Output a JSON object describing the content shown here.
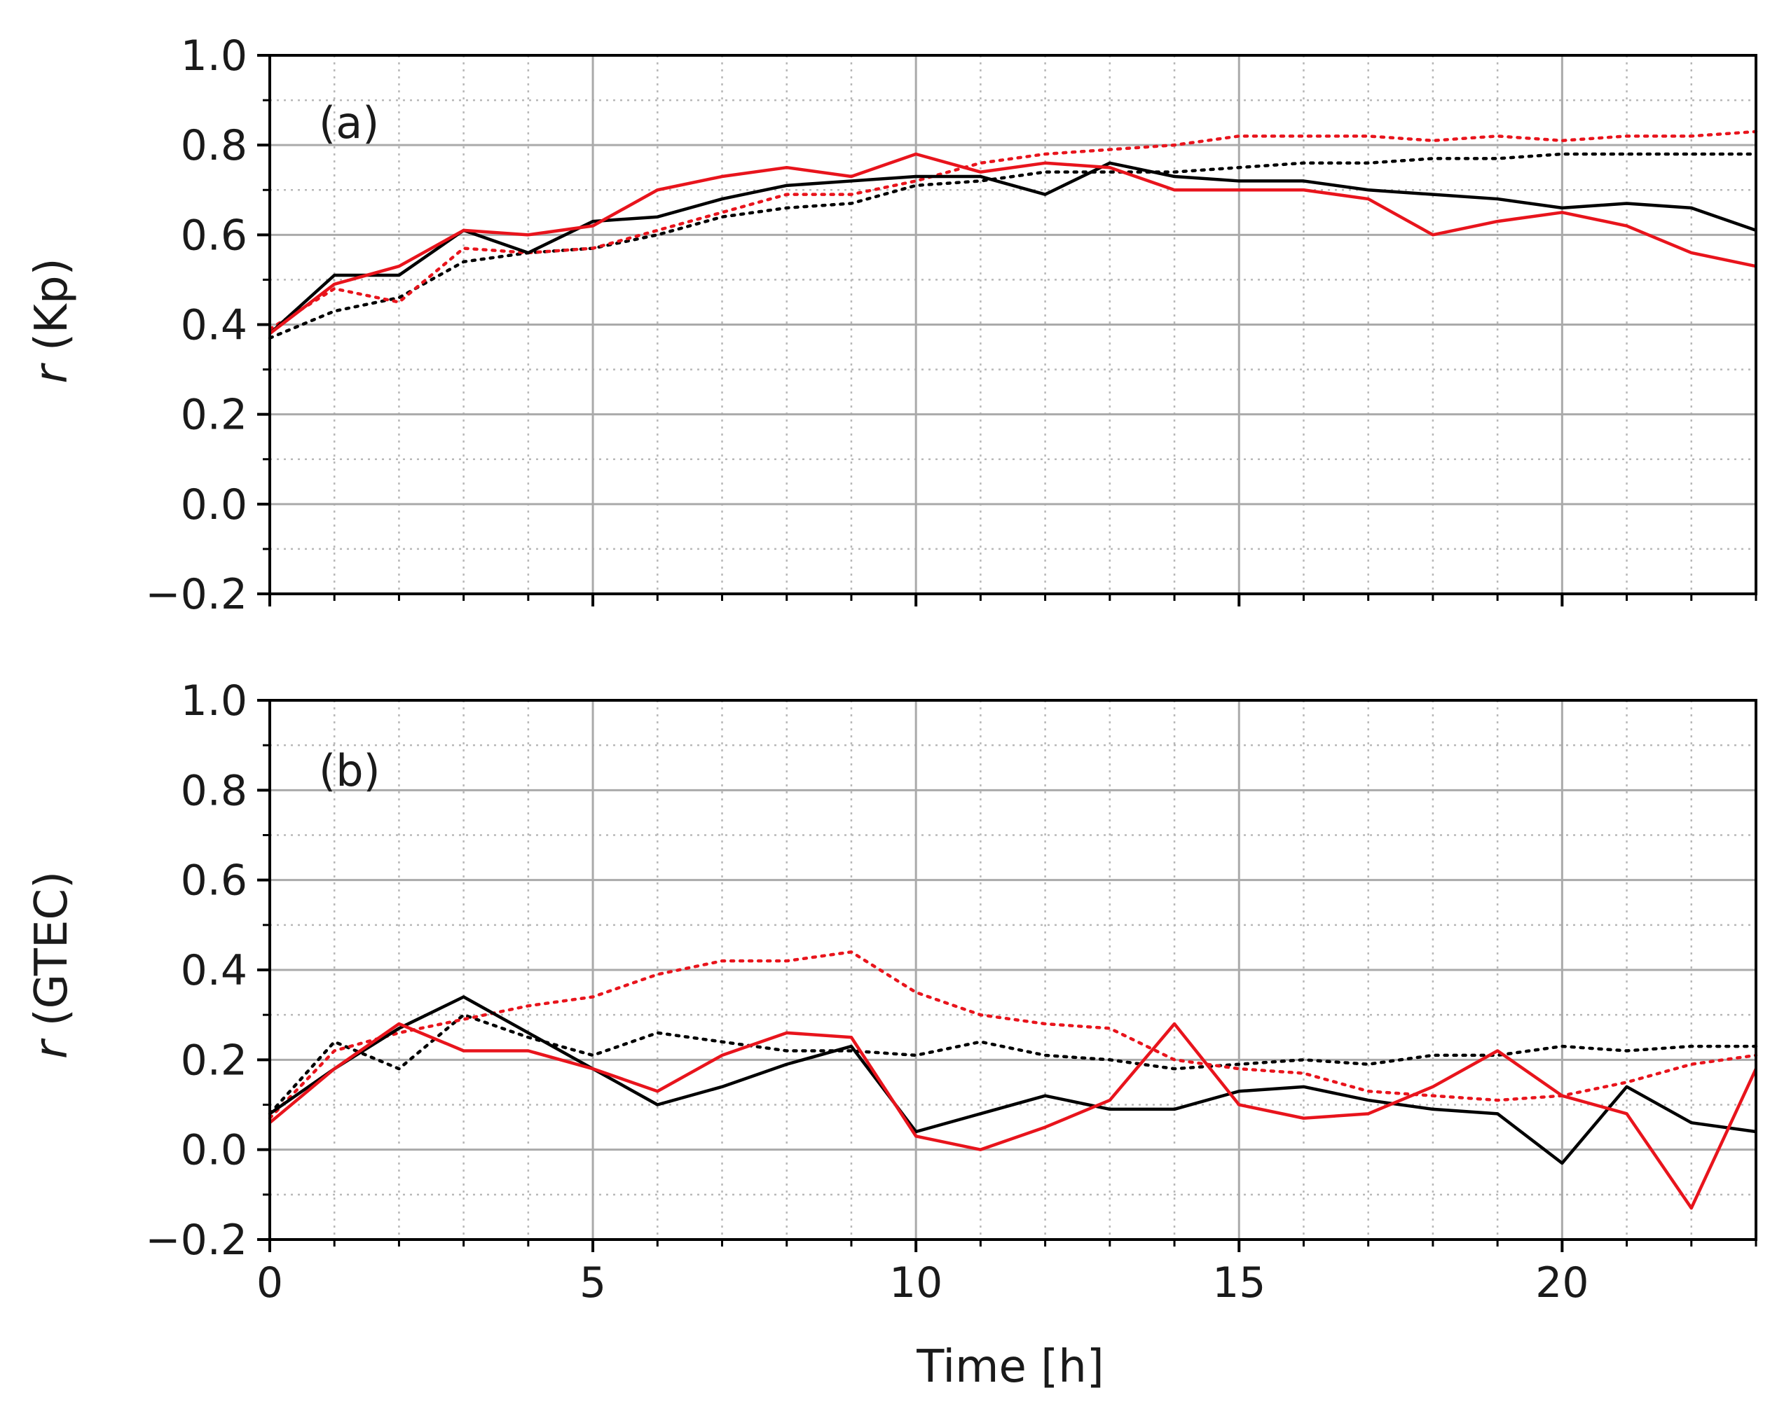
{
  "chart_data": [
    {
      "type": "line",
      "panel_label": "(a)",
      "ylabel_var": "r",
      "ylabel_rest": " (Kp)",
      "xlabel": "",
      "xlim": [
        0,
        23
      ],
      "ylim": [
        -0.2,
        1.0
      ],
      "yticks": [
        -0.2,
        0.0,
        0.2,
        0.4,
        0.6,
        0.8,
        1.0
      ],
      "ytick_labels": [
        "−0.2",
        "0.0",
        "0.2",
        "0.4",
        "0.6",
        "0.8",
        "1.0"
      ],
      "xticks": [
        0,
        5,
        10,
        15,
        20
      ],
      "xtick_labels": [],
      "grid": true,
      "x": [
        0,
        1,
        2,
        3,
        4,
        5,
        6,
        7,
        8,
        9,
        10,
        11,
        12,
        13,
        14,
        15,
        16,
        17,
        18,
        19,
        20,
        21,
        22,
        23
      ],
      "series": [
        {
          "name": "black solid",
          "color": "#000000",
          "style": "solid",
          "values": [
            0.38,
            0.51,
            0.51,
            0.61,
            0.56,
            0.63,
            0.64,
            0.68,
            0.71,
            0.72,
            0.73,
            0.73,
            0.69,
            0.76,
            0.73,
            0.72,
            0.72,
            0.7,
            0.69,
            0.68,
            0.66,
            0.67,
            0.66,
            0.61
          ]
        },
        {
          "name": "red solid",
          "color": "#e8141c",
          "style": "solid",
          "values": [
            0.38,
            0.49,
            0.53,
            0.61,
            0.6,
            0.62,
            0.7,
            0.73,
            0.75,
            0.73,
            0.78,
            0.74,
            0.76,
            0.75,
            0.7,
            0.7,
            0.7,
            0.68,
            0.6,
            0.63,
            0.65,
            0.62,
            0.56,
            0.53
          ]
        },
        {
          "name": "black dotted",
          "color": "#000000",
          "style": "dotted",
          "values": [
            0.37,
            0.43,
            0.46,
            0.54,
            0.56,
            0.57,
            0.6,
            0.64,
            0.66,
            0.67,
            0.71,
            0.72,
            0.74,
            0.74,
            0.74,
            0.75,
            0.76,
            0.76,
            0.77,
            0.77,
            0.78,
            0.78,
            0.78,
            0.78
          ]
        },
        {
          "name": "red dotted",
          "color": "#e8141c",
          "style": "dotted",
          "values": [
            0.39,
            0.48,
            0.45,
            0.57,
            0.56,
            0.57,
            0.61,
            0.65,
            0.69,
            0.69,
            0.72,
            0.76,
            0.78,
            0.79,
            0.8,
            0.82,
            0.82,
            0.82,
            0.81,
            0.82,
            0.81,
            0.82,
            0.82,
            0.83
          ]
        }
      ]
    },
    {
      "type": "line",
      "panel_label": "(b)",
      "ylabel_var": "r",
      "ylabel_rest": " (GTEC)",
      "xlabel": "Time [h]",
      "xlim": [
        0,
        23
      ],
      "ylim": [
        -0.2,
        1.0
      ],
      "yticks": [
        -0.2,
        0.0,
        0.2,
        0.4,
        0.6,
        0.8,
        1.0
      ],
      "ytick_labels": [
        "−0.2",
        "0.0",
        "0.2",
        "0.4",
        "0.6",
        "0.8",
        "1.0"
      ],
      "xticks": [
        0,
        5,
        10,
        15,
        20
      ],
      "xtick_labels": [
        "0",
        "5",
        "10",
        "15",
        "20"
      ],
      "grid": true,
      "x": [
        0,
        1,
        2,
        3,
        4,
        5,
        6,
        7,
        8,
        9,
        10,
        11,
        12,
        13,
        14,
        15,
        16,
        17,
        18,
        19,
        20,
        21,
        22,
        23
      ],
      "series": [
        {
          "name": "black solid",
          "color": "#000000",
          "style": "solid",
          "values": [
            0.08,
            0.18,
            0.27,
            0.34,
            0.26,
            0.18,
            0.1,
            0.14,
            0.19,
            0.23,
            0.04,
            0.08,
            0.12,
            0.09,
            0.09,
            0.13,
            0.14,
            0.11,
            0.09,
            0.08,
            -0.03,
            0.14,
            0.06,
            0.04
          ]
        },
        {
          "name": "red solid",
          "color": "#e8141c",
          "style": "solid",
          "values": [
            0.06,
            0.18,
            0.28,
            0.22,
            0.22,
            0.18,
            0.13,
            0.21,
            0.26,
            0.25,
            0.03,
            0.0,
            0.05,
            0.11,
            0.28,
            0.1,
            0.07,
            0.08,
            0.14,
            0.22,
            0.12,
            0.08,
            -0.13,
            0.18
          ]
        },
        {
          "name": "black dotted",
          "color": "#000000",
          "style": "dotted",
          "values": [
            0.08,
            0.24,
            0.18,
            0.3,
            0.25,
            0.21,
            0.26,
            0.24,
            0.22,
            0.22,
            0.21,
            0.24,
            0.21,
            0.2,
            0.18,
            0.19,
            0.2,
            0.19,
            0.21,
            0.21,
            0.23,
            0.22,
            0.23,
            0.23
          ]
        },
        {
          "name": "red dotted",
          "color": "#e8141c",
          "style": "dotted",
          "values": [
            0.07,
            0.22,
            0.26,
            0.29,
            0.32,
            0.34,
            0.39,
            0.42,
            0.42,
            0.44,
            0.35,
            0.3,
            0.28,
            0.27,
            0.2,
            0.18,
            0.17,
            0.13,
            0.12,
            0.11,
            0.12,
            0.15,
            0.19,
            0.21
          ]
        }
      ]
    }
  ]
}
